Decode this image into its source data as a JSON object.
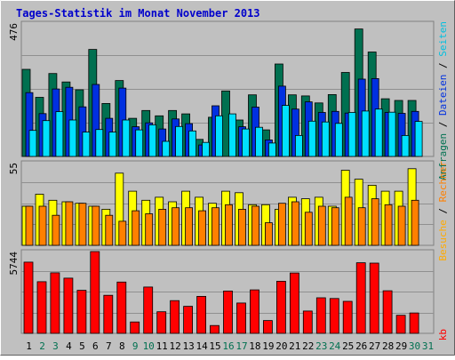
{
  "title": "Tages-Statistik im Monat November 2013",
  "colors": {
    "title": "#0000cc",
    "background": "#c0c0c0",
    "grid": "#909090",
    "anfragen": "#007050",
    "dateien": "#0030e0",
    "seiten": "#00e0ff",
    "besuche": "#ffff00",
    "rechner": "#ff8000",
    "kb": "#ff0000",
    "weekday_label": "#000000",
    "weekend_label": "#007050"
  },
  "legend": {
    "top_right": [
      {
        "text": "Anfragen",
        "color": "#007050"
      },
      {
        "text": " / ",
        "color": "#000000"
      },
      {
        "text": "Dateien",
        "color": "#0030e0"
      },
      {
        "text": " / ",
        "color": "#000000"
      },
      {
        "text": "Seiten",
        "color": "#00c0e0"
      }
    ],
    "middle_right": [
      {
        "text": "Besuche",
        "color": "#ffaa00"
      },
      {
        "text": " / ",
        "color": "#000000"
      },
      {
        "text": "Rechner",
        "color": "#ff8000"
      }
    ],
    "bottom_right": [
      {
        "text": "kb",
        "color": "#ff0000"
      }
    ]
  },
  "chart_data": [
    {
      "type": "bar",
      "panel": "top",
      "ymax_label": "476",
      "ylim": [
        0,
        476
      ],
      "categories": [
        "1",
        "2",
        "3",
        "4",
        "5",
        "6",
        "7",
        "8",
        "9",
        "10",
        "11",
        "12",
        "13",
        "14",
        "15",
        "16",
        "17",
        "18",
        "19",
        "20",
        "21",
        "22",
        "23",
        "24",
        "25",
        "26",
        "27",
        "28",
        "29",
        "30",
        "31"
      ],
      "weekend": [
        2,
        3,
        9,
        10,
        16,
        17,
        23,
        24,
        30,
        31
      ],
      "series": [
        {
          "name": "Anfragen",
          "values": [
            311,
            211,
            296,
            266,
            238,
            382,
            189,
            271,
            136,
            164,
            145,
            164,
            152,
            61,
            140,
            234,
            130,
            220,
            95,
            330,
            220,
            216,
            191,
            221,
            300,
            455,
            373,
            206,
            200,
            200,
            0
          ]
        },
        {
          "name": "Dateien",
          "values": [
            228,
            153,
            241,
            247,
            177,
            257,
            136,
            244,
            106,
            120,
            98,
            134,
            117,
            41,
            181,
            0,
            106,
            176,
            59,
            251,
            169,
            195,
            157,
            161,
            155,
            276,
            278,
            157,
            154,
            161,
            0
          ]
        },
        {
          "name": "Seiten",
          "values": [
            93,
            128,
            160,
            130,
            87,
            96,
            87,
            130,
            95,
            113,
            54,
            107,
            91,
            50,
            145,
            152,
            98,
            104,
            48,
            182,
            75,
            126,
            123,
            118,
            157,
            162,
            169,
            158,
            75,
            125,
            0
          ]
        }
      ]
    },
    {
      "type": "bar",
      "panel": "middle",
      "ymax_label": "55",
      "ylim": [
        0,
        55
      ],
      "categories": [
        "1",
        "2",
        "3",
        "4",
        "5",
        "6",
        "7",
        "8",
        "9",
        "10",
        "11",
        "12",
        "13",
        "14",
        "15",
        "16",
        "17",
        "18",
        "19",
        "20",
        "21",
        "22",
        "23",
        "24",
        "25",
        "26",
        "27",
        "28",
        "29",
        "30",
        "31"
      ],
      "series": [
        {
          "name": "Besuche",
          "values": [
            26,
            34,
            30,
            29,
            28,
            26,
            24,
            48,
            36,
            30,
            32,
            29,
            36,
            32,
            28,
            36,
            35,
            27,
            27,
            24,
            32,
            31,
            32,
            26,
            50,
            44,
            40,
            36,
            36,
            51,
            0
          ]
        },
        {
          "name": "Rechner",
          "values": [
            26,
            26,
            20,
            29,
            28,
            26,
            20,
            16,
            23,
            21,
            24,
            25,
            25,
            23,
            25,
            27,
            24,
            26,
            15,
            28,
            29,
            22,
            26,
            25,
            32,
            25,
            31,
            27,
            26,
            30,
            0
          ]
        }
      ]
    },
    {
      "type": "bar",
      "panel": "bottom",
      "ymax_label": "5744",
      "ylim": [
        0,
        5744
      ],
      "categories": [
        "1",
        "2",
        "3",
        "4",
        "5",
        "6",
        "7",
        "8",
        "9",
        "10",
        "11",
        "12",
        "13",
        "14",
        "15",
        "16",
        "17",
        "18",
        "19",
        "20",
        "21",
        "22",
        "23",
        "24",
        "25",
        "26",
        "27",
        "28",
        "29",
        "30",
        "31"
      ],
      "series": [
        {
          "name": "kb",
          "values": [
            5000,
            3630,
            4250,
            3880,
            3020,
            5744,
            2670,
            3600,
            800,
            3250,
            1520,
            2300,
            1900,
            2600,
            550,
            2970,
            2130,
            3050,
            900,
            3660,
            4240,
            1570,
            2500,
            2450,
            2250,
            4960,
            4930,
            2990,
            1270,
            1430,
            0
          ]
        }
      ]
    }
  ]
}
